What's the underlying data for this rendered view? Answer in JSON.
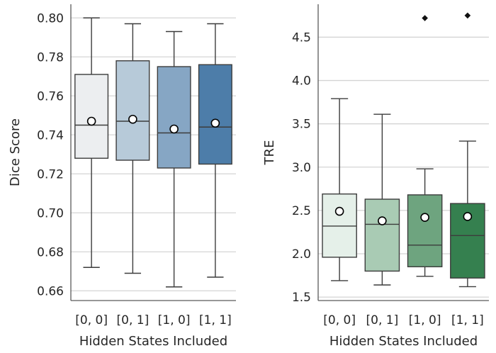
{
  "chart_data": [
    {
      "type": "box",
      "ylabel": "Dice Score",
      "xlabel": "Hidden States Included",
      "categories": [
        "[0, 0]",
        "[0, 1]",
        "[1, 0]",
        "[1, 1]"
      ],
      "ylim": [
        0.655,
        0.807
      ],
      "yticks": [
        "0.66",
        "0.68",
        "0.70",
        "0.72",
        "0.74",
        "0.76",
        "0.78",
        "0.80"
      ],
      "grid": "horizontal",
      "boxes": [
        {
          "whisker_low": 0.672,
          "q1": 0.728,
          "median": 0.745,
          "q3": 0.771,
          "whisker_high": 0.8,
          "mean": 0.747,
          "outliers": [],
          "color": "#eceef0"
        },
        {
          "whisker_low": 0.669,
          "q1": 0.727,
          "median": 0.747,
          "q3": 0.778,
          "whisker_high": 0.797,
          "mean": 0.748,
          "outliers": [],
          "color": "#b7cad9"
        },
        {
          "whisker_low": 0.662,
          "q1": 0.723,
          "median": 0.741,
          "q3": 0.775,
          "whisker_high": 0.793,
          "mean": 0.743,
          "outliers": [],
          "color": "#86a6c4"
        },
        {
          "whisker_low": 0.667,
          "q1": 0.725,
          "median": 0.744,
          "q3": 0.776,
          "whisker_high": 0.797,
          "mean": 0.746,
          "outliers": [],
          "color": "#4d7da9"
        }
      ]
    },
    {
      "type": "box",
      "ylabel": "TRE",
      "xlabel": "Hidden States Included",
      "categories": [
        "[0, 0]",
        "[0, 1]",
        "[1, 0]",
        "[1, 1]"
      ],
      "ylim": [
        1.46,
        4.88
      ],
      "yticks": [
        "1.5",
        "2.0",
        "2.5",
        "3.0",
        "3.5",
        "4.0",
        "4.5"
      ],
      "grid": "horizontal",
      "boxes": [
        {
          "whisker_low": 1.69,
          "q1": 1.96,
          "median": 2.32,
          "q3": 2.69,
          "whisker_high": 3.79,
          "mean": 2.49,
          "outliers": [],
          "color": "#e5f0e9"
        },
        {
          "whisker_low": 1.64,
          "q1": 1.8,
          "median": 2.34,
          "q3": 2.63,
          "whisker_high": 3.61,
          "mean": 2.38,
          "outliers": [],
          "color": "#a9cbb4"
        },
        {
          "whisker_low": 1.74,
          "q1": 1.85,
          "median": 2.1,
          "q3": 2.68,
          "whisker_high": 2.98,
          "mean": 2.42,
          "outliers": [
            4.72
          ],
          "color": "#6ea47f"
        },
        {
          "whisker_low": 1.62,
          "q1": 1.72,
          "median": 2.21,
          "q3": 2.58,
          "whisker_high": 3.3,
          "mean": 2.43,
          "outliers": [
            4.75
          ],
          "color": "#35804f"
        }
      ]
    }
  ]
}
